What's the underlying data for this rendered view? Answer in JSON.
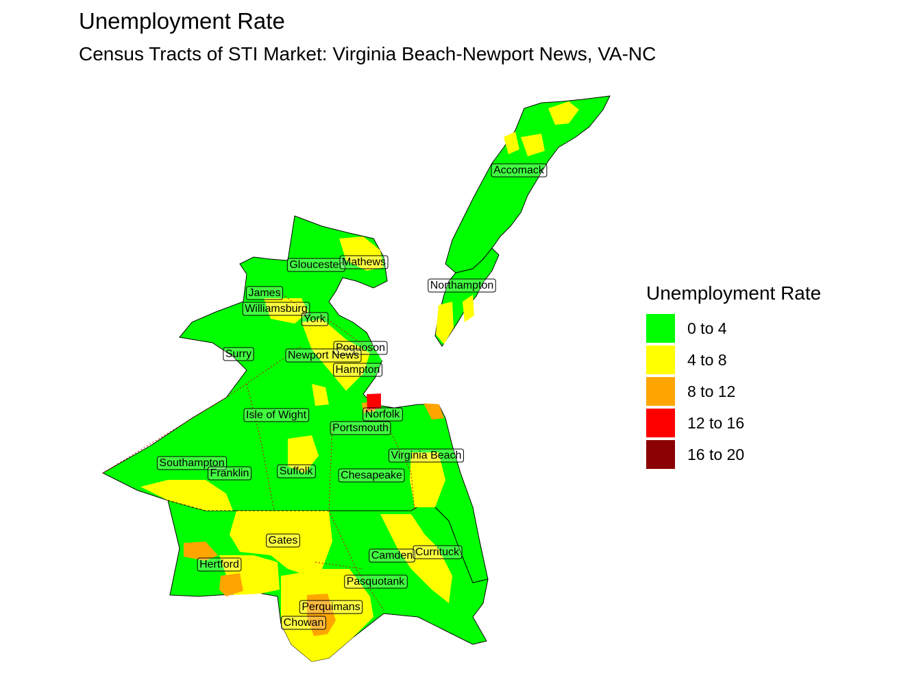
{
  "title": "Unemployment Rate",
  "subtitle": "Census Tracts of STI Market: Virginia Beach-Newport News, VA-NC",
  "legend": {
    "title": "Unemployment Rate",
    "items": [
      {
        "label": "0 to 4",
        "color": "#00ff00"
      },
      {
        "label": "4 to 8",
        "color": "#ffff00"
      },
      {
        "label": "8 to 12",
        "color": "#ffa500"
      },
      {
        "label": "12 to 16",
        "color": "#ff0000"
      },
      {
        "label": "16 to 20",
        "color": "#8b0000"
      }
    ]
  },
  "counties": [
    {
      "name": "Accomack"
    },
    {
      "name": "Gloucester"
    },
    {
      "name": "Mathews"
    },
    {
      "name": "Northampton"
    },
    {
      "name": "James"
    },
    {
      "name": "Williamsburg"
    },
    {
      "name": "York"
    },
    {
      "name": "Poquoson"
    },
    {
      "name": "Surry"
    },
    {
      "name": "Newport News"
    },
    {
      "name": "Hampton"
    },
    {
      "name": "Isle of Wight"
    },
    {
      "name": "Norfolk"
    },
    {
      "name": "Portsmouth"
    },
    {
      "name": "Virginia Beach"
    },
    {
      "name": "Southampton"
    },
    {
      "name": "Franklin"
    },
    {
      "name": "Suffolk"
    },
    {
      "name": "Chesapeake"
    },
    {
      "name": "Gates"
    },
    {
      "name": "Camden"
    },
    {
      "name": "Currituck"
    },
    {
      "name": "Hertford"
    },
    {
      "name": "Pasquotank"
    },
    {
      "name": "Perquimans"
    },
    {
      "name": "Chowan"
    }
  ]
}
